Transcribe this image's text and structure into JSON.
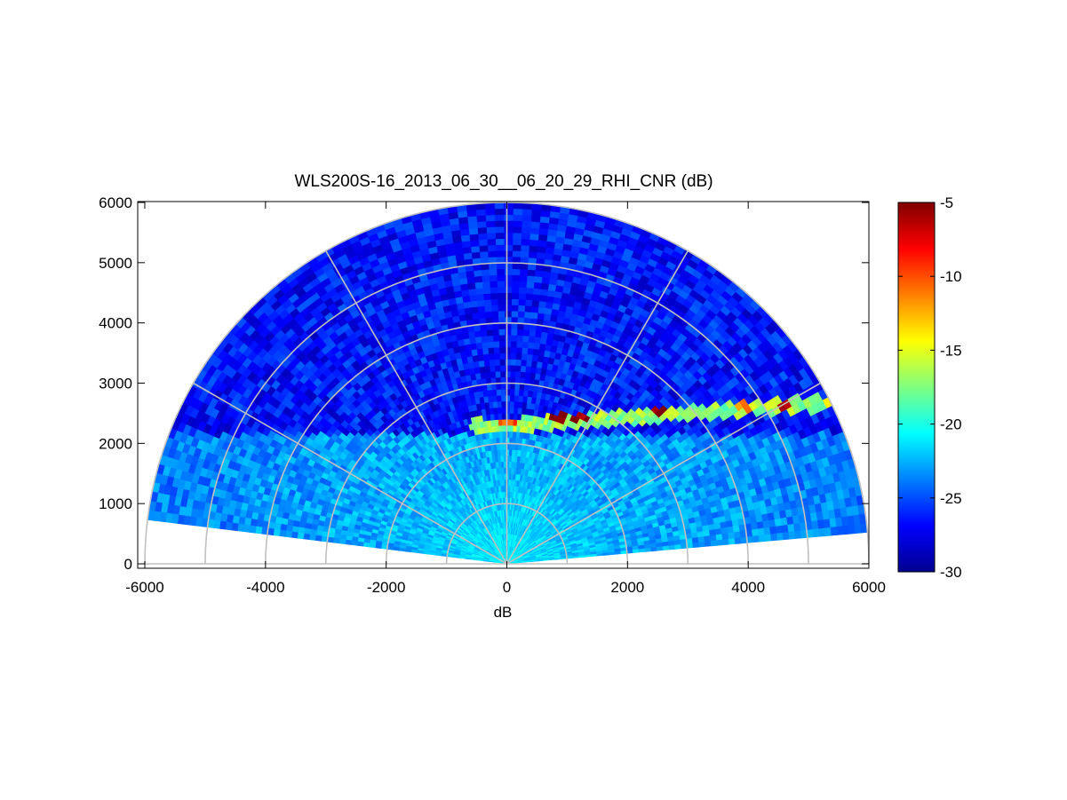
{
  "chart_data": {
    "type": "heatmap",
    "subtype": "polar-rhi-sector",
    "title": "WLS200S-16_2013_06_30__06_20_29_RHI_CNR (dB)",
    "xlabel": "dB",
    "ylabel": "",
    "xlim": [
      -6000,
      6000
    ],
    "ylim": [
      0,
      6000
    ],
    "x_ticks": [
      "-6000",
      "-4000",
      "-2000",
      "0",
      "2000",
      "4000",
      "6000"
    ],
    "y_ticks": [
      "0",
      "1000",
      "2000",
      "3000",
      "4000",
      "5000",
      "6000"
    ],
    "range_rings": [
      1000,
      2000,
      3000,
      4000,
      5000,
      6000
    ],
    "radial_lines_deg": [
      0,
      30,
      60,
      90,
      120,
      150,
      180
    ],
    "max_range": 6000,
    "elevation_start_deg": 5,
    "elevation_end_deg": 173,
    "colorbar": {
      "colormap": "jet",
      "min": -30,
      "max": -5,
      "ticks": [
        "-5",
        "-10",
        "-15",
        "-20",
        "-25",
        "-30"
      ]
    },
    "field_description": {
      "near_range_cnr_db": -21,
      "background_cnr_db": -26.5,
      "boundary_layer_top_m": 2300,
      "boundary_layer_cnr_db": -17,
      "aerosol_layer_peaks": [
        {
          "x": 0,
          "y": 2330,
          "cnr_db": -12
        },
        {
          "x": 850,
          "y": 2430,
          "cnr_db": -7
        },
        {
          "x": 1200,
          "y": 2440,
          "cnr_db": -7
        },
        {
          "x": 2500,
          "y": 2560,
          "cnr_db": -6
        },
        {
          "x": 3900,
          "y": 2620,
          "cnr_db": -13
        },
        {
          "x": 4600,
          "y": 2650,
          "cnr_db": -7
        },
        {
          "x": 5300,
          "y": 2700,
          "cnr_db": -14
        }
      ]
    },
    "grid": true,
    "legend": "none"
  }
}
